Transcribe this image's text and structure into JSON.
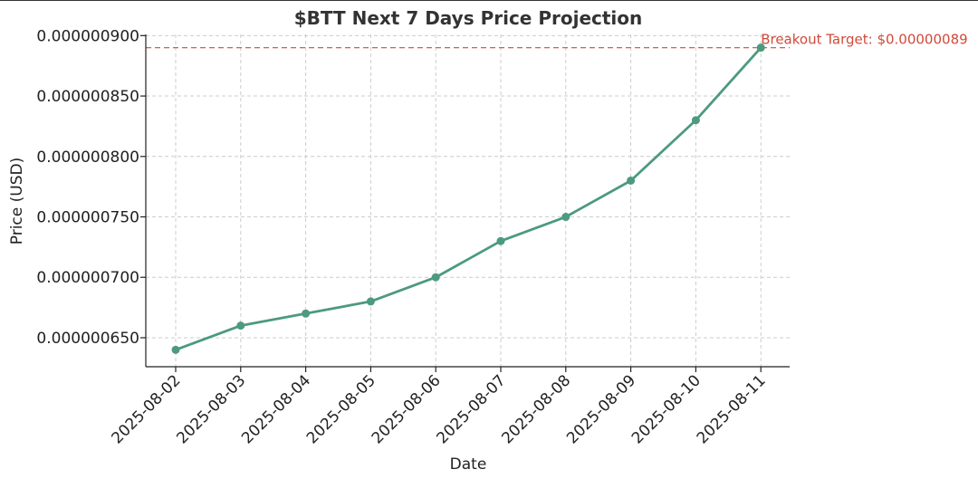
{
  "chart_data": {
    "type": "line",
    "title": "$BTT Next 7 Days Price Projection",
    "xlabel": "Date",
    "ylabel": "Price (USD)",
    "x": [
      "2025-08-02",
      "2025-08-03",
      "2025-08-04",
      "2025-08-05",
      "2025-08-06",
      "2025-08-07",
      "2025-08-08",
      "2025-08-09",
      "2025-08-10",
      "2025-08-11"
    ],
    "series": [
      {
        "values": [
          6.4e-07,
          6.6e-07,
          6.7e-07,
          6.8e-07,
          7e-07,
          7.3e-07,
          7.5e-07,
          7.8e-07,
          8.3e-07,
          8.9e-07
        ],
        "color": "#4c9a7f",
        "marker": "circle"
      }
    ],
    "ylim": [
      6.26e-07,
      9.01e-07
    ],
    "yticks": [
      6.5e-07,
      7e-07,
      7.5e-07,
      8e-07,
      8.5e-07,
      9e-07
    ],
    "ytick_labels": [
      "0.000000650",
      "0.000000700",
      "0.000000750",
      "0.000000800",
      "0.000000850",
      "0.000000900"
    ],
    "grid": true,
    "reference_line": {
      "y": 8.9e-07,
      "label": "Breakout Target: $0.00000089",
      "color": "#d04a3a",
      "style": "dashed"
    }
  }
}
